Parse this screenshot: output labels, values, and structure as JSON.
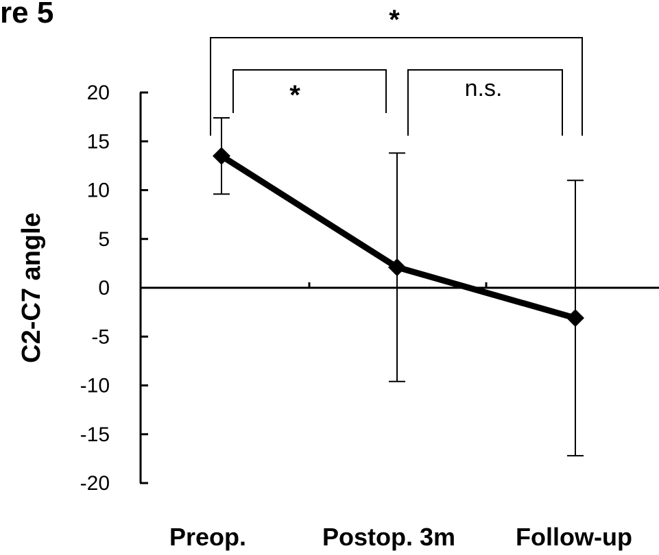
{
  "figure_label": "re 5",
  "chart_data": {
    "type": "line",
    "title": "",
    "xlabel": "",
    "ylabel": "C2-C7 angle",
    "categories": [
      "Preop.",
      "Postop. 3m",
      "Follow-up"
    ],
    "series": [
      {
        "values": [
          13.5,
          2.1,
          -3.1
        ],
        "error": [
          3.9,
          11.7,
          14.1
        ]
      }
    ],
    "ylim": [
      -20,
      20
    ],
    "yticks": [
      20,
      15,
      10,
      5,
      0,
      -5,
      -10,
      -15,
      -20
    ],
    "ytick_labels": [
      "20",
      "15",
      "10",
      "5",
      "0",
      "-5",
      "-10",
      "-15",
      "-20"
    ],
    "grid": false,
    "marker": "diamond",
    "line_color": "#000000",
    "significance": [
      {
        "from": 0,
        "to": 1,
        "label": "*"
      },
      {
        "from": 1,
        "to": 2,
        "label": "n.s."
      },
      {
        "from": 0,
        "to": 2,
        "label": "*"
      }
    ]
  }
}
